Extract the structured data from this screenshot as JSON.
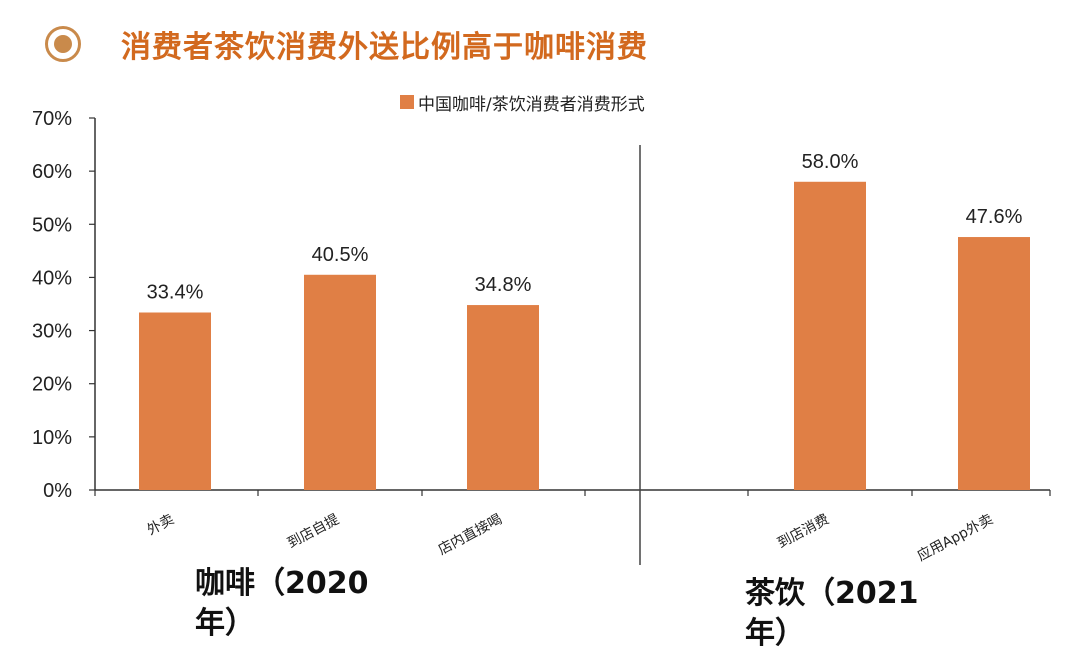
{
  "header": {
    "title": "消费者茶饮消费外送比例高于咖啡消费",
    "icon": "target-circle-icon"
  },
  "colors": {
    "bar": "#e07f45",
    "title": "#d2691e",
    "icon": "#c98a4b",
    "axis": "#333333"
  },
  "chart_data": {
    "type": "bar",
    "legend": [
      "中国咖啡/茶饮消费者消费形式"
    ],
    "legend_position": "top-center",
    "categories": [
      "外卖",
      "到店自提",
      "店内直接喝",
      "到店消费",
      "应用App外卖"
    ],
    "series": [
      {
        "name": "中国咖啡/茶饮消费者消费形式",
        "values": [
          33.4,
          40.5,
          34.8,
          58.0,
          47.6
        ]
      }
    ],
    "value_labels": [
      "33.4%",
      "40.5%",
      "34.8%",
      "58.0%",
      "47.6%"
    ],
    "y_ticks": [
      "0%",
      "10%",
      "20%",
      "30%",
      "40%",
      "50%",
      "60%",
      "70%"
    ],
    "ylim": [
      0,
      70
    ],
    "grid": false,
    "groups": [
      {
        "label_line1": "咖啡（2020",
        "label_line2": "年）",
        "categories": [
          "外卖",
          "到店自提",
          "店内直接喝"
        ]
      },
      {
        "label_line1": "茶饮（2021",
        "label_line2": "年）",
        "categories": [
          "到店消费",
          "应用App外卖"
        ]
      }
    ]
  }
}
